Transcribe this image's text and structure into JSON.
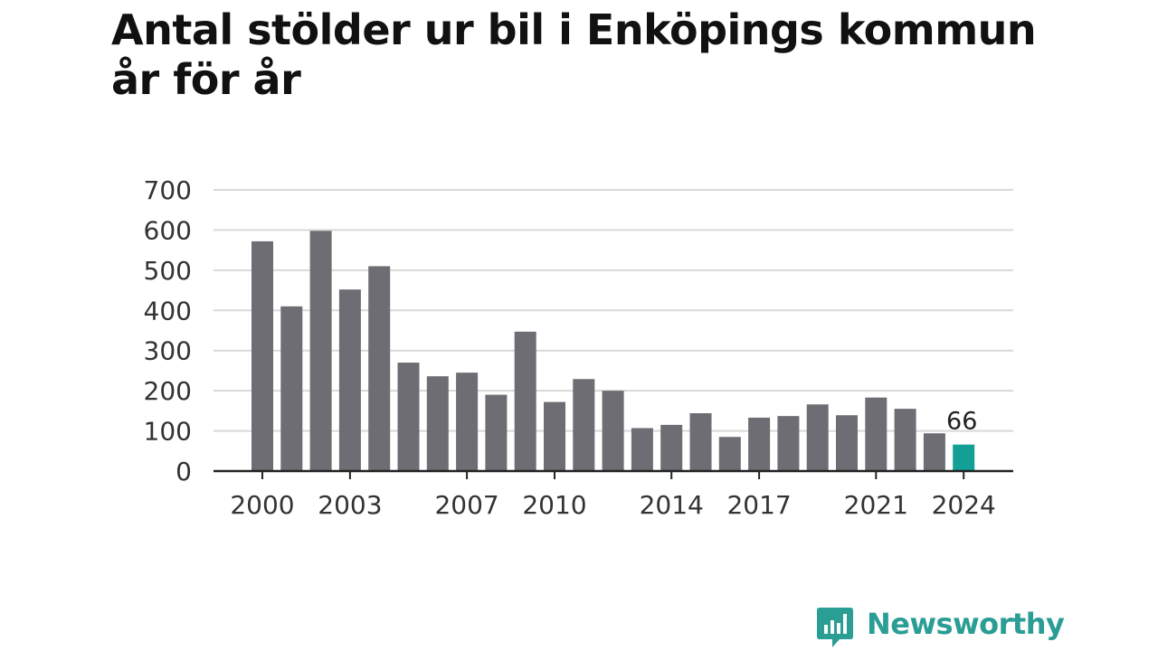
{
  "title": "Antal stölder ur bil i Enköpings kommun år för år",
  "brand": {
    "name": "Newsworthy",
    "icon": "newsworthy-logo-icon",
    "color": "#2a9d95"
  },
  "colors": {
    "bar": "#6e6d73",
    "highlight": "#12a096",
    "grid": "#d9d9d9",
    "axis": "#222222"
  },
  "chart_data": {
    "type": "bar",
    "title": "Antal stölder ur bil i Enköpings kommun år för år",
    "xlabel": "",
    "ylabel": "",
    "ylim": [
      0,
      700
    ],
    "yticks": [
      0,
      100,
      200,
      300,
      400,
      500,
      600,
      700
    ],
    "grid": true,
    "categories": [
      "2000",
      "2001",
      "2002",
      "2003",
      "2004",
      "2005",
      "2006",
      "2007",
      "2008",
      "2009",
      "2010",
      "2011",
      "2012",
      "2013",
      "2014",
      "2015",
      "2016",
      "2017",
      "2018",
      "2019",
      "2020",
      "2021",
      "2022",
      "2023",
      "2024"
    ],
    "values": [
      572,
      410,
      598,
      452,
      510,
      270,
      236,
      245,
      190,
      347,
      172,
      229,
      200,
      107,
      115,
      144,
      85,
      133,
      137,
      166,
      139,
      183,
      155,
      94,
      66
    ],
    "xtick_labels": [
      "2000",
      "2003",
      "2007",
      "2010",
      "2014",
      "2017",
      "2021",
      "2024"
    ],
    "highlight": {
      "category": "2024",
      "label": "66"
    }
  }
}
